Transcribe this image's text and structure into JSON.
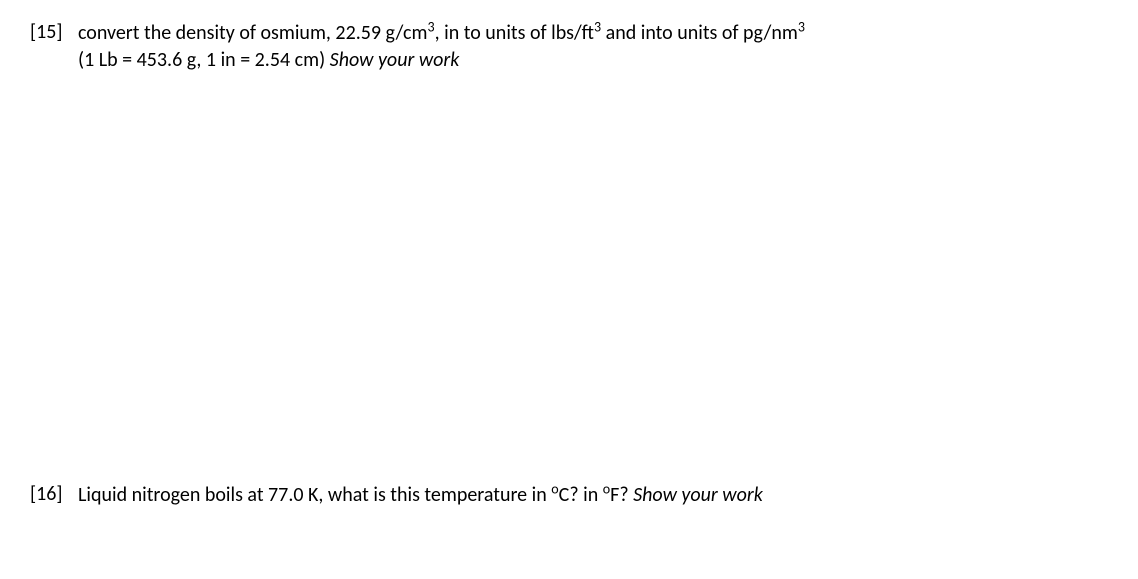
{
  "questions": [
    {
      "number": "[15]",
      "line1_pre": "convert the density of osmium, 22.59 g/cm",
      "line1_sup1": "3",
      "line1_mid1": ", in to units of lbs/ft",
      "line1_sup2": "3",
      "line1_mid2": " and into units of  pg/nm",
      "line1_sup3": "3",
      "line2_plain": "(1 Lb = 453.6 g, 1 in = 2.54 cm) ",
      "line2_italic": "Show your work"
    },
    {
      "number": "[16]",
      "line1_pre": "Liquid nitrogen boils at 77.0 K,  what is this temperature in ",
      "deg1": "o",
      "unit1": "C?  in ",
      "deg2": "o",
      "unit2": "F?  ",
      "italic": "Show your work"
    }
  ],
  "colors": {
    "text": "#000000",
    "background": "#ffffff"
  },
  "fontsize_pt": 15
}
